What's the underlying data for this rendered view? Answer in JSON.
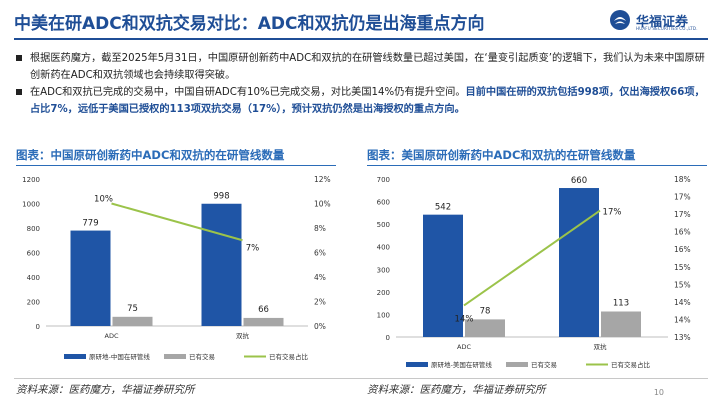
{
  "header": {
    "title": "中美在研ADC和双抗交易对比：ADC和双抗仍是出海重点方向",
    "logo_text": "华福证券",
    "logo_sub": "HUAFU SECURITIES CO.,LTD."
  },
  "bullets": [
    {
      "text": "根据医药魔方，截至2025年5月31日，中国原研创新药中ADC和双抗的在研管线数量已超过美国，在‘量变引起质变’的逻辑下，我们认为未来中国原研创新药在ADC和双抗领域也会持续取得突破。",
      "bold": ""
    },
    {
      "text": "在ADC和双抗已完成的交易中，中国自研ADC有10%已完成交易，对比美国14%仍有提升空间。",
      "bold": "目前中国在研的双抗包括998项，仅出海授权66项，占比7%，远低于美国已授权的113项双抗交易（17%），预计双抗仍然是出海授权的重点方向。"
    }
  ],
  "chart_titles": {
    "left": "图表：中国原研创新药中ADC和双抗的在研管线数量",
    "right": "图表：美国原研创新药中ADC和双抗的在研管线数量"
  },
  "sources": {
    "left": "资料来源：医药魔方，华福证券研究所",
    "right": "资料来源：医药魔方，华福证券研究所"
  },
  "page_number": "10",
  "colors": {
    "bar_primary": "#1f55a6",
    "bar_secondary": "#a6a6a6",
    "line": "#9bc34a",
    "title": "#1f4e96"
  },
  "chart_data": [
    {
      "type": "bar",
      "categories": [
        "ADC",
        "双抗"
      ],
      "series": [
        {
          "name": "原研地-中国在研管线",
          "values": [
            779,
            998
          ],
          "axis": "left"
        },
        {
          "name": "已有交易",
          "values": [
            75,
            66
          ],
          "axis": "left"
        },
        {
          "name": "已有交易占比",
          "values": [
            10,
            7
          ],
          "axis": "right",
          "kind": "line"
        }
      ],
      "bar_labels": [
        "779",
        "75",
        "998",
        "66"
      ],
      "line_labels": [
        "10%",
        "7%"
      ],
      "ylim": [
        0,
        1200
      ],
      "yticks": [
        "0",
        "200",
        "400",
        "600",
        "800",
        "1000",
        "1200"
      ],
      "y2lim": [
        0,
        12
      ],
      "y2ticks": [
        "0%",
        "2%",
        "4%",
        "6%",
        "8%",
        "10%",
        "12%"
      ],
      "legend": [
        "原研地-中国在研管线",
        "已有交易",
        "已有交易占比"
      ]
    },
    {
      "type": "bar",
      "categories": [
        "ADC",
        "双抗"
      ],
      "series": [
        {
          "name": "原研地-美国在研管线",
          "values": [
            542,
            660
          ],
          "axis": "left"
        },
        {
          "name": "已有交易",
          "values": [
            78,
            113
          ],
          "axis": "left"
        },
        {
          "name": "已有交易占比",
          "values": [
            14,
            17
          ],
          "axis": "right",
          "kind": "line"
        }
      ],
      "bar_labels": [
        "542",
        "78",
        "660",
        "113"
      ],
      "line_labels": [
        "14%",
        "17%"
      ],
      "ylim": [
        0,
        700
      ],
      "yticks": [
        "0",
        "100",
        "200",
        "300",
        "400",
        "500",
        "600",
        "700"
      ],
      "y2lim": [
        13,
        18
      ],
      "y2ticks": [
        "13%",
        "14%",
        "14%",
        "15%",
        "15%",
        "16%",
        "16%",
        "17%",
        "17%",
        "18%"
      ],
      "legend": [
        "原研地-美国在研管线",
        "已有交易",
        "已有交易占比"
      ]
    }
  ]
}
